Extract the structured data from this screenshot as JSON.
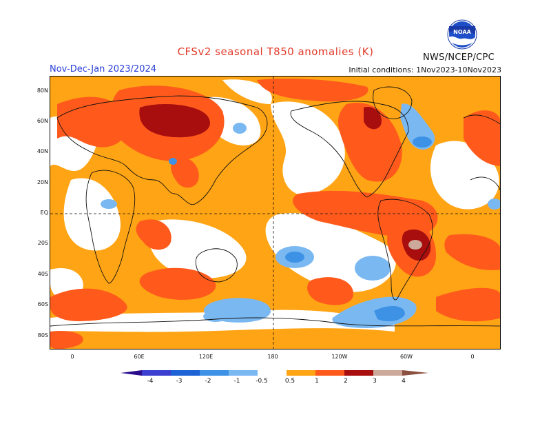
{
  "title": "CFSv2 seasonal T850 anomalies (K)",
  "season": "Nov-Dec-Jan 2023/2024",
  "initial_conditions": "Initial conditions: 1Nov2023-10Nov2023",
  "agency": "NWS/NCEP/CPC",
  "logo_text": "NOAA",
  "lat_labels": [
    "80N",
    "60N",
    "40N",
    "20N",
    "EQ",
    "20S",
    "40S",
    "60S",
    "80S"
  ],
  "lon_labels": [
    "0",
    "60E",
    "120E",
    "180",
    "120W",
    "60W",
    "0"
  ],
  "colorbar": {
    "labels": [
      "-4",
      "-3",
      "-2",
      "-1",
      "-0.5",
      "0.5",
      "1",
      "2",
      "3",
      "4"
    ],
    "colors": [
      "#2a0c8c",
      "#3c3fd0",
      "#1d63d6",
      "#3d92e6",
      "#7ab8f2",
      "#ffffff",
      "#ffa414",
      "#ff5a1c",
      "#e22a14",
      "#a80e0e",
      "#cca99a",
      "#8c5040"
    ]
  },
  "colors": {
    "warm_weak": "#ffa414",
    "warm_mod": "#ff5a1c",
    "warm_strong": "#e22a14",
    "warm_extreme": "#a80e0e",
    "warm_max": "#cca99a",
    "cool_weak": "#7ab8f2",
    "cool_mod": "#3d92e6",
    "cool_strong": "#1d63d6"
  }
}
